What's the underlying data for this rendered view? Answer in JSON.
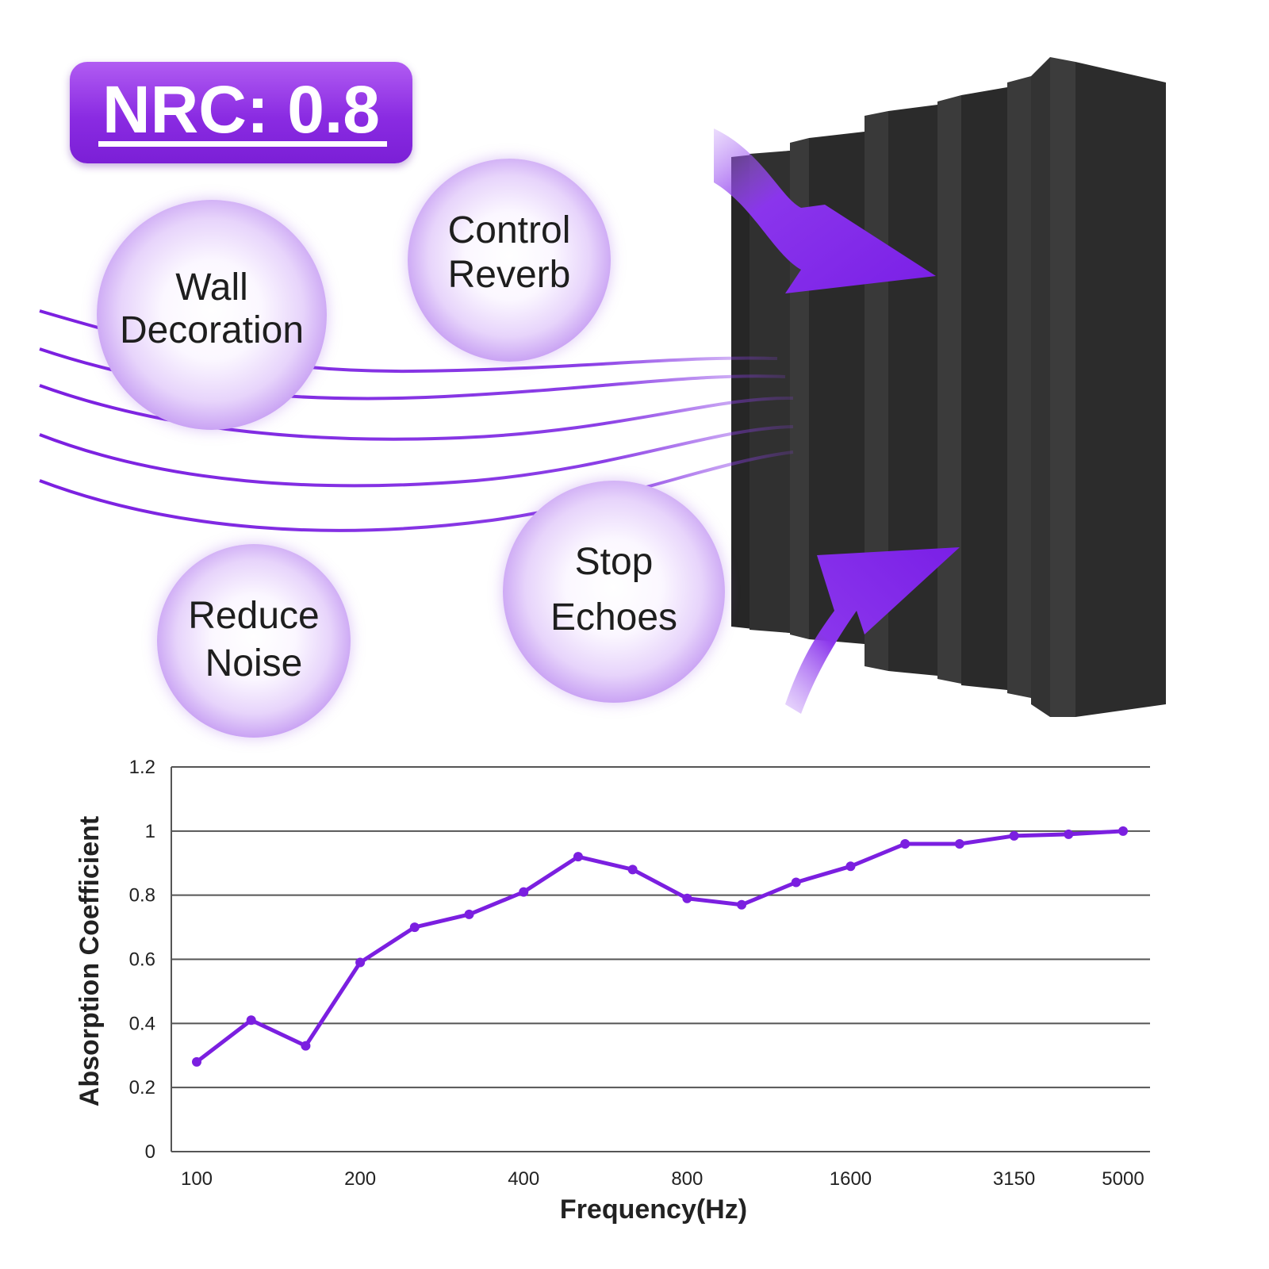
{
  "badge": {
    "text": "NRC: 0.8"
  },
  "bubbles": [
    {
      "id": "wall-decoration",
      "lines": [
        "Wall",
        "Decoration"
      ]
    },
    {
      "id": "control-reverb",
      "lines": [
        "Control",
        "Reverb"
      ]
    },
    {
      "id": "reduce-noise",
      "lines": [
        "Reduce",
        "Noise"
      ]
    },
    {
      "id": "stop-echoes",
      "lines": [
        "Stop",
        "Echoes"
      ]
    }
  ],
  "colors": {
    "accent": "#7b1fe0",
    "foam": "#2a2a2a",
    "grid": "#555555"
  },
  "icons": [
    "sound-wave-icon",
    "arrow-icon",
    "acoustic-foam-panel-icon"
  ],
  "chart_data": {
    "type": "line",
    "title": "",
    "xlabel": "Frequency(Hz)",
    "ylabel": "Absorption Coefficient",
    "ylim": [
      0,
      1.2
    ],
    "yticks": [
      "0",
      "0.2",
      "0.4",
      "0.6",
      "0.8",
      "1",
      "1.2"
    ],
    "xticks": [
      "100",
      "200",
      "400",
      "800",
      "1600",
      "3150",
      "5000"
    ],
    "grid": true,
    "legend": "none",
    "x": [
      100,
      125,
      160,
      200,
      250,
      315,
      400,
      500,
      630,
      800,
      1000,
      1250,
      1600,
      2000,
      2500,
      3150,
      4000,
      5000
    ],
    "series": [
      {
        "values": [
          0.28,
          0.41,
          0.33,
          0.59,
          0.7,
          0.74,
          0.81,
          0.92,
          0.88,
          0.79,
          0.77,
          0.84,
          0.89,
          0.96,
          0.96,
          0.985,
          0.99,
          1.0
        ]
      }
    ]
  }
}
